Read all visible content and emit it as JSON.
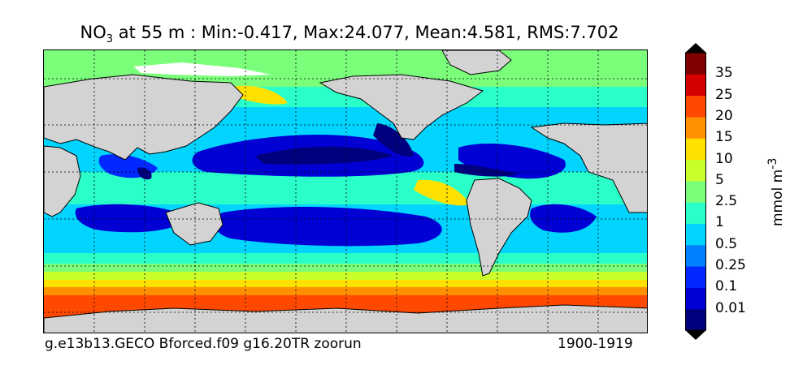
{
  "title": {
    "variable": "NO",
    "subscript": "3",
    "rest": " at 55 m : Min:-0.417, Max:24.077, Mean:4.581, RMS:7.702"
  },
  "footer": {
    "run": "g.e13b13.GECO Bforced.f09 g16.20TR zoorun",
    "years": "1900-1919"
  },
  "colorbar": {
    "unit": "mmol m",
    "unit_exponent": "-3",
    "levels": [
      "0.01",
      "0.1",
      "0.25",
      "0.5",
      "1",
      "2.5",
      "5",
      "10",
      "15",
      "20",
      "25",
      "35"
    ],
    "colors": [
      "#00007f",
      "#0000d4",
      "#0028ff",
      "#0080ff",
      "#00d4ff",
      "#2bffc9",
      "#7bff7b",
      "#c9ff2b",
      "#ffe100",
      "#ff9100",
      "#ff4800",
      "#d40000",
      "#7f0000"
    ],
    "extend": "both"
  },
  "map": {
    "land_color": "#d3d3d3",
    "ice_color": "#ffffff",
    "grid": "dotted"
  }
}
